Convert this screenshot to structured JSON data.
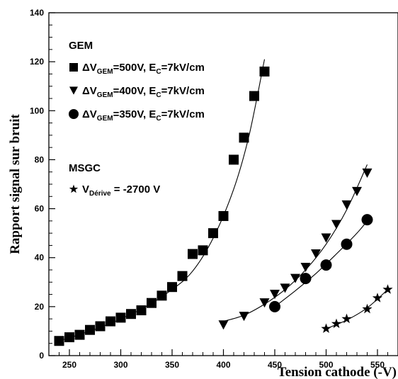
{
  "chart_data": {
    "type": "scatter",
    "title": "",
    "xlabel": "Tension cathode (-V)",
    "ylabel": "Rapport signal sur bruit",
    "xlim": [
      230,
      570
    ],
    "ylim": [
      0,
      140
    ],
    "xticks": [
      250,
      300,
      350,
      400,
      450,
      500,
      550
    ],
    "yticks": [
      0,
      20,
      40,
      60,
      80,
      100,
      120,
      140
    ],
    "grid": false,
    "legend_placement": "top-left",
    "legend": {
      "gem_heading": "GEM",
      "msgc_heading": "MSGC",
      "entries": [
        {
          "series": 0,
          "symbol": "square",
          "parts": [
            [
              "",
              "ΔV"
            ],
            [
              "sub",
              "GEM"
            ],
            [
              "",
              "=500V, E"
            ],
            [
              "sub",
              "C"
            ],
            [
              "",
              "=7kV/cm"
            ]
          ]
        },
        {
          "series": 1,
          "symbol": "triangle-down",
          "parts": [
            [
              "",
              "ΔV"
            ],
            [
              "sub",
              "GEM"
            ],
            [
              "",
              "=400V, E"
            ],
            [
              "sub",
              "C"
            ],
            [
              "",
              "=7kV/cm"
            ]
          ]
        },
        {
          "series": 2,
          "symbol": "circle",
          "parts": [
            [
              "",
              "ΔV"
            ],
            [
              "sub",
              "GEM"
            ],
            [
              "",
              "=350V, E"
            ],
            [
              "sub",
              "C"
            ],
            [
              "",
              "=7kV/cm"
            ]
          ]
        },
        {
          "series": 3,
          "symbol": "star",
          "parts": [
            [
              "",
              "V"
            ],
            [
              "sub",
              "Dérive"
            ],
            [
              "",
              " = -2700 V"
            ]
          ]
        }
      ]
    },
    "series": [
      {
        "group": "GEM",
        "marker": "square",
        "points": [
          [
            240,
            6
          ],
          [
            250,
            7.5
          ],
          [
            260,
            8.5
          ],
          [
            270,
            10.5
          ],
          [
            280,
            12
          ],
          [
            290,
            14
          ],
          [
            300,
            15.5
          ],
          [
            310,
            17
          ],
          [
            320,
            18.5
          ],
          [
            330,
            21.5
          ],
          [
            340,
            24.5
          ],
          [
            350,
            28
          ],
          [
            360,
            32.5
          ],
          [
            370,
            41.5
          ],
          [
            380,
            43
          ],
          [
            390,
            50
          ],
          [
            400,
            57
          ],
          [
            410,
            80
          ],
          [
            420,
            89
          ],
          [
            430,
            106
          ],
          [
            440,
            116
          ]
        ],
        "fit": [
          [
            240,
            6
          ],
          [
            280,
            11.5
          ],
          [
            320,
            19
          ],
          [
            350,
            27
          ],
          [
            370,
            34.5
          ],
          [
            390,
            48
          ],
          [
            410,
            68
          ],
          [
            425,
            90
          ],
          [
            440,
            121
          ]
        ]
      },
      {
        "group": "GEM",
        "marker": "triangle-down",
        "points": [
          [
            400,
            12.5
          ],
          [
            420,
            16
          ],
          [
            440,
            21.5
          ],
          [
            450,
            25
          ],
          [
            460,
            27.5
          ],
          [
            470,
            31.5
          ],
          [
            480,
            36
          ],
          [
            490,
            41.5
          ],
          [
            500,
            48
          ],
          [
            510,
            53.5
          ],
          [
            520,
            61.5
          ],
          [
            530,
            67
          ],
          [
            540,
            74.5
          ]
        ],
        "fit": [
          [
            400,
            14
          ],
          [
            420,
            16.5
          ],
          [
            440,
            21
          ],
          [
            460,
            27
          ],
          [
            480,
            35
          ],
          [
            500,
            45.5
          ],
          [
            520,
            59.5
          ],
          [
            540,
            78
          ]
        ]
      },
      {
        "group": "GEM",
        "marker": "circle",
        "points": [
          [
            450,
            20
          ],
          [
            480,
            31.5
          ],
          [
            500,
            37
          ],
          [
            520,
            45.5
          ],
          [
            540,
            55.5
          ]
        ],
        "fit": [
          [
            450,
            20
          ],
          [
            470,
            26.5
          ],
          [
            490,
            33.5
          ],
          [
            510,
            41.5
          ],
          [
            530,
            50
          ],
          [
            540,
            55
          ]
        ]
      },
      {
        "group": "MSGC",
        "marker": "star",
        "points": [
          [
            500,
            11
          ],
          [
            510,
            13
          ],
          [
            520,
            15
          ],
          [
            540,
            19
          ],
          [
            550,
            23.5
          ],
          [
            560,
            27
          ]
        ],
        "fit": [
          [
            500,
            11
          ],
          [
            520,
            14.5
          ],
          [
            540,
            19.5
          ],
          [
            560,
            27
          ]
        ]
      }
    ]
  }
}
